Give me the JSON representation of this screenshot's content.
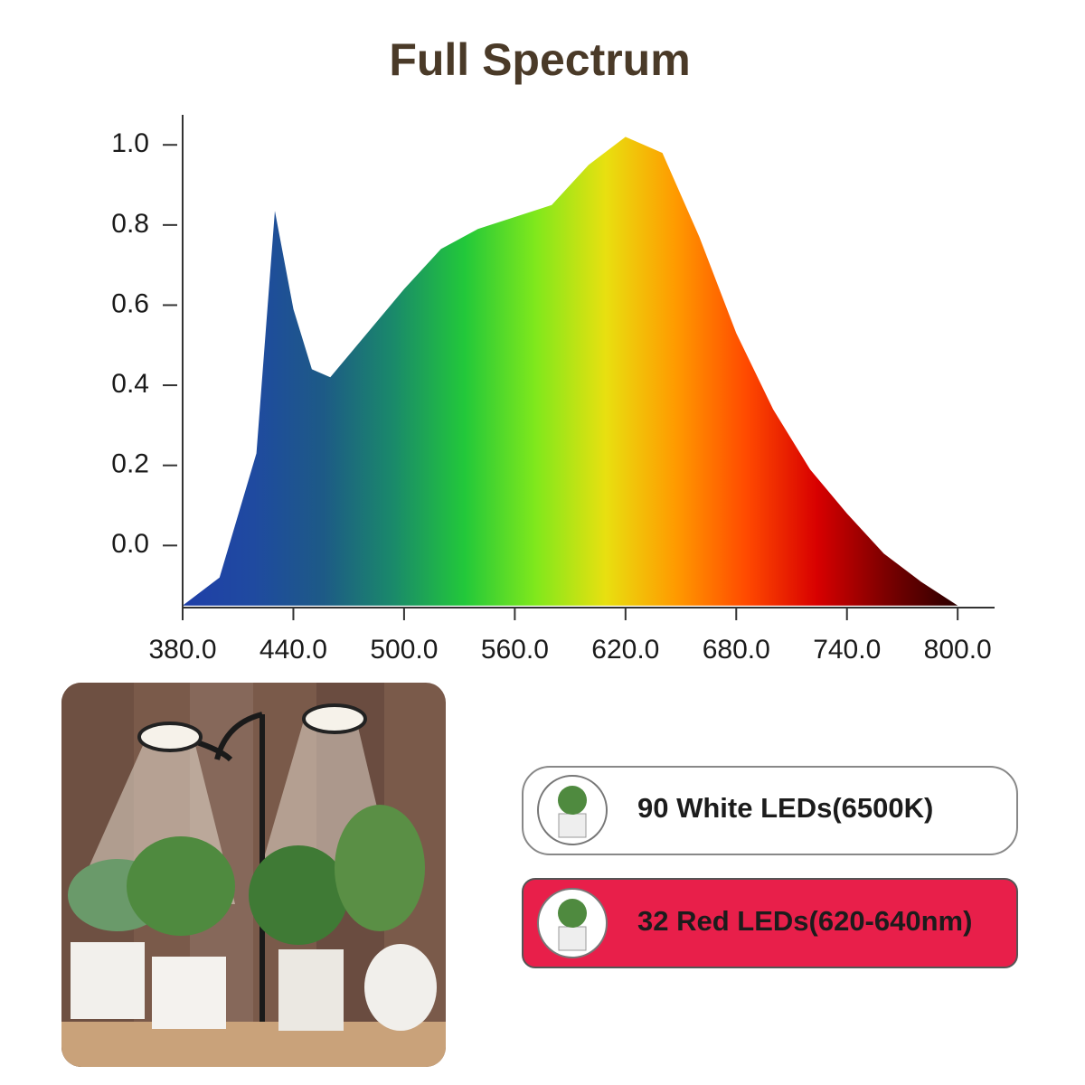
{
  "chart_data": {
    "type": "area",
    "title": "Full Spectrum",
    "x": [
      380,
      400,
      420,
      430,
      440,
      450,
      460,
      480,
      500,
      520,
      540,
      560,
      580,
      600,
      620,
      640,
      660,
      680,
      700,
      720,
      740,
      760,
      780,
      800
    ],
    "y": [
      -0.15,
      -0.08,
      0.23,
      0.835,
      0.59,
      0.44,
      0.42,
      0.53,
      0.64,
      0.74,
      0.79,
      0.82,
      0.85,
      0.95,
      1.02,
      0.98,
      0.77,
      0.53,
      0.34,
      0.19,
      0.08,
      -0.02,
      -0.09,
      -0.15
    ],
    "colors": [
      "#1f3fa8",
      "#1f4aa0",
      "#1d5a86",
      "#1a8a6a",
      "#22c83a",
      "#7fe81c",
      "#e8e010",
      "#ff9a00",
      "#ff4a00",
      "#d80000",
      "#7a0000",
      "#2a0000"
    ],
    "xlim": [
      380,
      820
    ],
    "ylim": [
      -0.155,
      1.075
    ],
    "xticks": [
      {
        "value": 380,
        "label": "380.0"
      },
      {
        "value": 440,
        "label": "440.0"
      },
      {
        "value": 500,
        "label": "500.0"
      },
      {
        "value": 560,
        "label": "560.0"
      },
      {
        "value": 620,
        "label": "620.0"
      },
      {
        "value": 680,
        "label": "680.0"
      },
      {
        "value": 740,
        "label": "740.0"
      },
      {
        "value": 800,
        "label": "800.0"
      }
    ],
    "yticks": [
      {
        "value": 0,
        "label": "0.0"
      },
      0.2,
      0.4,
      0.6,
      0.8,
      {
        "value": 1,
        "label": "1.0"
      }
    ],
    "grid": false
  },
  "cards": [
    {
      "label": "90 White LEDs(6500K)",
      "color": "#ffffff"
    },
    {
      "label": "32 Red LEDs(620-640nm)",
      "color": "#e81f4a"
    }
  ]
}
